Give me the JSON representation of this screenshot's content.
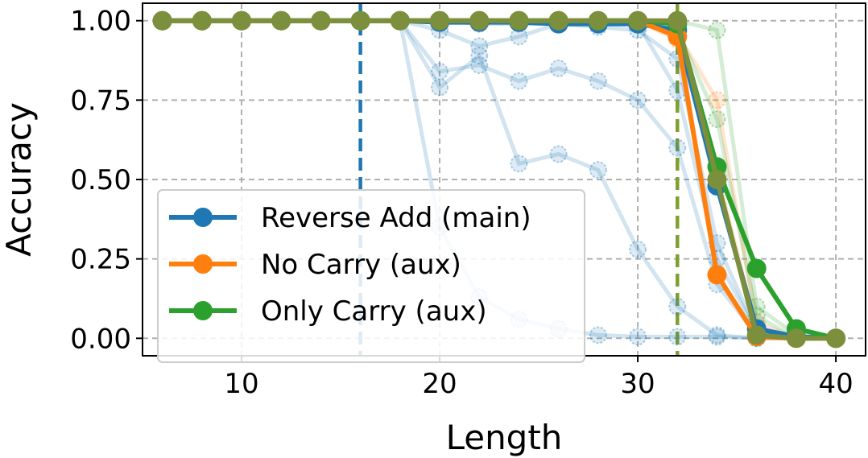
{
  "chart_data": {
    "type": "line",
    "xlabel": "Length",
    "ylabel": "Accuracy",
    "xlim": [
      5,
      41.5
    ],
    "ylim": [
      -0.055,
      1.055
    ],
    "xticks": [
      10,
      20,
      30,
      40
    ],
    "yticks": [
      0.0,
      0.25,
      0.5,
      0.75,
      1.0
    ],
    "xtick_labels": [
      "10",
      "20",
      "30",
      "40"
    ],
    "ytick_labels": [
      "0.00",
      "0.25",
      "0.50",
      "0.75",
      "1.00"
    ],
    "grid": true,
    "legend_position": "lower-left",
    "vlines": [
      {
        "x": 16,
        "color": "#1f77b4"
      },
      {
        "x": 32,
        "color": "#7f9f2f"
      }
    ],
    "faint_runs": [
      {
        "color": "#1f77b4",
        "x": [
          6,
          8,
          10,
          12,
          14,
          16,
          18,
          20,
          22,
          24,
          26,
          28,
          30,
          32,
          34,
          36,
          38,
          40
        ],
        "y": [
          1,
          1,
          1,
          1,
          1,
          1,
          1,
          0.97,
          0.92,
          0.95,
          0.99,
          0.98,
          0.97,
          0.88,
          0.3,
          0.02,
          0,
          0
        ]
      },
      {
        "color": "#1f77b4",
        "x": [
          6,
          8,
          10,
          12,
          14,
          16,
          18,
          20,
          22,
          24,
          26,
          28,
          30,
          32,
          34,
          36,
          38,
          40
        ],
        "y": [
          1,
          1,
          1,
          1,
          1,
          1,
          1,
          0.84,
          0.86,
          0.81,
          0.85,
          0.81,
          0.75,
          0.6,
          0.17,
          0.01,
          0,
          0
        ]
      },
      {
        "color": "#1f77b4",
        "x": [
          6,
          8,
          10,
          12,
          14,
          16,
          18,
          20,
          22,
          24,
          26,
          28,
          30,
          32,
          34,
          36,
          38,
          40
        ],
        "y": [
          1,
          1,
          1,
          1,
          1,
          1,
          1,
          0.79,
          0.89,
          0.55,
          0.58,
          0.53,
          0.28,
          0.1,
          0.01,
          0,
          0,
          0
        ]
      },
      {
        "color": "#1f77b4",
        "x": [
          6,
          8,
          10,
          12,
          14,
          16,
          18,
          20,
          22,
          24,
          26,
          28,
          30,
          32,
          34,
          36,
          38,
          40
        ],
        "y": [
          1,
          1,
          1,
          1,
          1,
          1,
          1,
          0.35,
          0.13,
          0.06,
          0.03,
          0.01,
          0.005,
          0.005,
          0.005,
          0,
          0,
          0
        ]
      },
      {
        "color": "#1f77b4",
        "x": [
          6,
          8,
          10,
          12,
          14,
          16,
          18,
          20,
          22,
          24,
          26,
          28,
          30,
          32,
          34,
          36,
          38,
          40
        ],
        "y": [
          1,
          1,
          1,
          1,
          1,
          1,
          1,
          1,
          0.99,
          0.99,
          0.99,
          0.99,
          0.99,
          0.78,
          0.25,
          0.02,
          0,
          0
        ]
      },
      {
        "color": "#ff7f0e",
        "x": [
          6,
          8,
          10,
          12,
          14,
          16,
          18,
          20,
          22,
          24,
          26,
          28,
          30,
          32,
          34,
          36,
          38,
          40
        ],
        "y": [
          1,
          1,
          1,
          1,
          1,
          1,
          1,
          1,
          1,
          1,
          1,
          1,
          1,
          0.96,
          0.75,
          0.05,
          0,
          0
        ]
      },
      {
        "color": "#ff7f0e",
        "x": [
          6,
          8,
          10,
          12,
          14,
          16,
          18,
          20,
          22,
          24,
          26,
          28,
          30,
          32,
          34,
          36,
          38,
          40
        ],
        "y": [
          1,
          1,
          1,
          1,
          1,
          1,
          1,
          1,
          1,
          1,
          1,
          1,
          1,
          0.94,
          0.52,
          0.03,
          0,
          0
        ]
      },
      {
        "color": "#2ca02c",
        "x": [
          6,
          8,
          10,
          12,
          14,
          16,
          18,
          20,
          22,
          24,
          26,
          28,
          30,
          32,
          34,
          36,
          38,
          40
        ],
        "y": [
          1,
          1,
          1,
          1,
          1,
          1,
          1,
          1,
          1,
          1,
          1,
          1,
          1,
          1,
          0.97,
          0.1,
          0.01,
          0
        ]
      },
      {
        "color": "#2ca02c",
        "x": [
          6,
          8,
          10,
          12,
          14,
          16,
          18,
          20,
          22,
          24,
          26,
          28,
          30,
          32,
          34,
          36,
          38,
          40
        ],
        "y": [
          1,
          1,
          1,
          1,
          1,
          1,
          1,
          1,
          1,
          1,
          1,
          1,
          1,
          0.97,
          0.69,
          0.07,
          0,
          0
        ]
      },
      {
        "color": "#2ca02c",
        "x": [
          6,
          8,
          10,
          12,
          14,
          16,
          18,
          20,
          22,
          24,
          26,
          28,
          30,
          32,
          34,
          36,
          38,
          40
        ],
        "y": [
          1,
          1,
          1,
          1,
          1,
          1,
          1,
          1,
          1,
          1,
          1,
          1,
          1,
          0.98,
          0.48,
          0.03,
          0,
          0
        ]
      }
    ],
    "series": [
      {
        "name": "Reverse Add (main)",
        "color": "#1f77b4",
        "x": [
          6,
          8,
          10,
          12,
          14,
          16,
          18,
          20,
          22,
          24,
          26,
          28,
          30,
          32,
          34,
          36,
          38,
          40
        ],
        "y": [
          1,
          1,
          1,
          1,
          1,
          1,
          1,
          0.995,
          0.995,
          0.995,
          0.99,
          0.99,
          0.99,
          0.97,
          0.48,
          0.03,
          0.005,
          0
        ]
      },
      {
        "name": "No Carry (aux)",
        "color": "#ff7f0e",
        "x": [
          6,
          8,
          10,
          12,
          14,
          16,
          18,
          20,
          22,
          24,
          26,
          28,
          30,
          32,
          34,
          36,
          38,
          40
        ],
        "y": [
          1,
          1,
          1,
          1,
          1,
          1,
          1,
          1,
          1,
          1,
          1,
          1,
          1,
          0.95,
          0.2,
          0.005,
          0,
          0
        ]
      },
      {
        "name": "Only Carry (aux)",
        "color": "#2ca02c",
        "x": [
          6,
          8,
          10,
          12,
          14,
          16,
          18,
          20,
          22,
          24,
          26,
          28,
          30,
          32,
          34,
          36,
          38,
          40
        ],
        "y": [
          1,
          1,
          1,
          1,
          1,
          1,
          1,
          1,
          1,
          1,
          1,
          1,
          1,
          0.99,
          0.54,
          0.22,
          0.03,
          0
        ]
      },
      {
        "name": "",
        "color": "#7b8f3c",
        "x": [
          6,
          8,
          10,
          12,
          14,
          16,
          18,
          20,
          22,
          24,
          26,
          28,
          30,
          32,
          34,
          36,
          38,
          40
        ],
        "y": [
          1,
          1,
          1,
          1,
          1,
          1,
          1,
          1,
          1,
          1,
          1,
          1,
          1,
          1,
          0.5,
          0.01,
          0,
          0
        ]
      }
    ]
  }
}
